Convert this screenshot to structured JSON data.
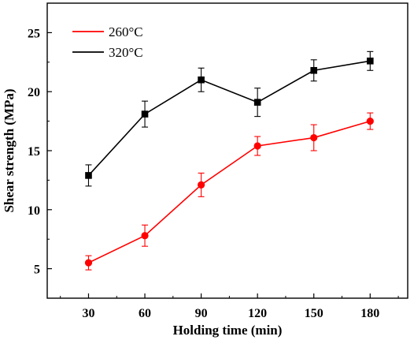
{
  "chart_data": {
    "type": "line",
    "title": "",
    "xlabel": "Holding time (min)",
    "ylabel": "Shear strength (MPa)",
    "x": [
      30,
      60,
      90,
      120,
      150,
      180
    ],
    "x_ticks": [
      "30",
      "60",
      "90",
      "120",
      "150",
      "180"
    ],
    "xlim": [
      8,
      200
    ],
    "ylim": [
      2.5,
      27.5
    ],
    "y_ticks": [
      "5",
      "10",
      "15",
      "20",
      "25"
    ],
    "legend_position": "top-left",
    "grid": false,
    "series": [
      {
        "name": "260°C",
        "color": "#ff0000",
        "marker": "circle",
        "values": [
          5.5,
          7.8,
          12.1,
          15.4,
          16.1,
          17.5
        ],
        "errors": [
          0.6,
          0.9,
          1.0,
          0.8,
          1.1,
          0.7
        ]
      },
      {
        "name": "320°C",
        "color": "#000000",
        "marker": "square",
        "values": [
          12.9,
          18.1,
          21.0,
          19.1,
          21.8,
          22.6
        ],
        "errors": [
          0.9,
          1.1,
          1.0,
          1.2,
          0.9,
          0.8
        ]
      }
    ]
  }
}
